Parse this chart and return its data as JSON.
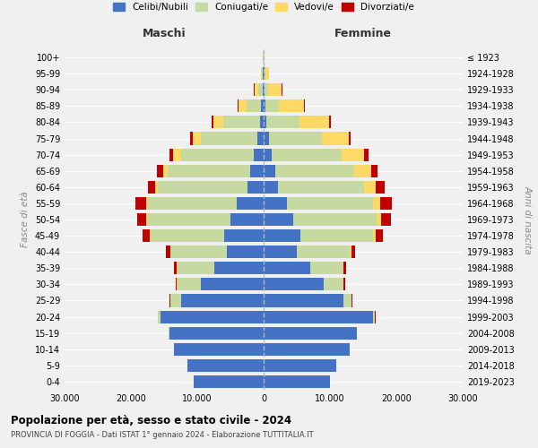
{
  "age_groups": [
    "0-4",
    "5-9",
    "10-14",
    "15-19",
    "20-24",
    "25-29",
    "30-34",
    "35-39",
    "40-44",
    "45-49",
    "50-54",
    "55-59",
    "60-64",
    "65-69",
    "70-74",
    "75-79",
    "80-84",
    "85-89",
    "90-94",
    "95-99",
    "100+"
  ],
  "birth_years": [
    "2019-2023",
    "2014-2018",
    "2009-2013",
    "2004-2008",
    "1999-2003",
    "1994-1998",
    "1989-1993",
    "1984-1988",
    "1979-1983",
    "1974-1978",
    "1969-1973",
    "1964-1968",
    "1959-1963",
    "1954-1958",
    "1949-1953",
    "1944-1948",
    "1939-1943",
    "1934-1938",
    "1929-1933",
    "1924-1928",
    "≤ 1923"
  ],
  "male": {
    "celibi": [
      10500,
      11500,
      13500,
      14200,
      15500,
      12500,
      9500,
      7500,
      5500,
      6000,
      5000,
      4000,
      2500,
      2000,
      1500,
      1000,
      600,
      350,
      150,
      100,
      50
    ],
    "coniugati": [
      0,
      0,
      0,
      100,
      400,
      1500,
      3500,
      5500,
      8500,
      11000,
      12500,
      13500,
      13500,
      12500,
      11000,
      8500,
      5500,
      2200,
      600,
      150,
      50
    ],
    "vedovi": [
      0,
      0,
      0,
      0,
      0,
      30,
      50,
      50,
      80,
      100,
      150,
      200,
      400,
      700,
      1100,
      1200,
      1500,
      1200,
      600,
      150,
      30
    ],
    "divorziati": [
      0,
      0,
      0,
      0,
      30,
      100,
      200,
      400,
      700,
      1100,
      1400,
      1600,
      1100,
      900,
      600,
      350,
      200,
      120,
      80,
      40,
      10
    ]
  },
  "female": {
    "nubili": [
      10000,
      11000,
      13000,
      14000,
      16500,
      12000,
      9000,
      7000,
      5000,
      5500,
      4500,
      3500,
      2200,
      1700,
      1200,
      800,
      400,
      250,
      120,
      80,
      30
    ],
    "coniugate": [
      0,
      0,
      0,
      50,
      300,
      1200,
      3000,
      5000,
      8000,
      11000,
      12500,
      13000,
      13000,
      12000,
      10500,
      8000,
      5000,
      2000,
      600,
      150,
      30
    ],
    "vedove": [
      0,
      0,
      0,
      0,
      0,
      30,
      80,
      80,
      180,
      400,
      700,
      1100,
      1700,
      2500,
      3500,
      4000,
      4500,
      3800,
      2000,
      600,
      100
    ],
    "divorziate": [
      0,
      0,
      0,
      0,
      30,
      100,
      200,
      400,
      600,
      1100,
      1500,
      1700,
      1300,
      900,
      600,
      350,
      200,
      120,
      80,
      40,
      10
    ]
  },
  "colors": {
    "celibi": "#4472C4",
    "coniugati": "#c5d9a0",
    "vedovi": "#FFD966",
    "divorziati": "#C00000"
  },
  "legend_labels": [
    "Celibi/Nubili",
    "Coniugati/e",
    "Vedovi/e",
    "Divorziati/e"
  ],
  "title": "Popolazione per età, sesso e stato civile - 2024",
  "subtitle": "PROVINCIA DI FOGGIA - Dati ISTAT 1° gennaio 2024 - Elaborazione TUTTITALIA.IT",
  "xlabel_left": "Maschi",
  "xlabel_right": "Femmine",
  "ylabel_left": "Fasce di età",
  "ylabel_right": "Anni di nascita",
  "xlim": 30000,
  "background_color": "#f0f0f0"
}
